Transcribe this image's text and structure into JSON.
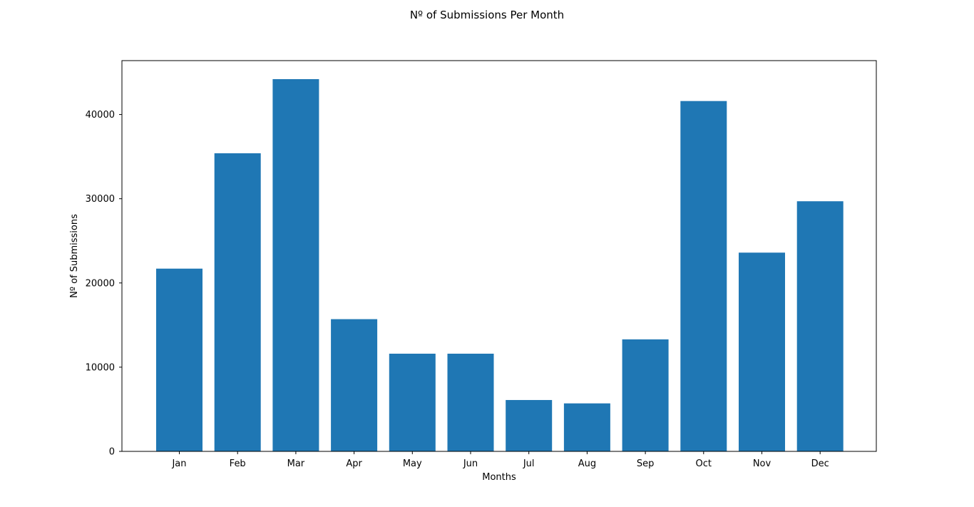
{
  "chart_data": {
    "type": "bar",
    "title": "Nº of Submissions Per Month",
    "xlabel": "Months",
    "ylabel": "Nº of Submissions",
    "categories": [
      "Jan",
      "Feb",
      "Mar",
      "Apr",
      "May",
      "Jun",
      "Jul",
      "Aug",
      "Sep",
      "Oct",
      "Nov",
      "Dec"
    ],
    "values": [
      21700,
      35400,
      44200,
      15700,
      11600,
      11600,
      6100,
      5700,
      13300,
      41600,
      23600,
      29700
    ],
    "ylim": [
      0,
      46400
    ],
    "yticks": [
      0,
      10000,
      20000,
      30000,
      40000
    ],
    "ytick_labels": [
      "0",
      "10000",
      "20000",
      "30000",
      "40000"
    ],
    "grid": false,
    "legend": "none",
    "bar_color": "#1f77b4"
  }
}
